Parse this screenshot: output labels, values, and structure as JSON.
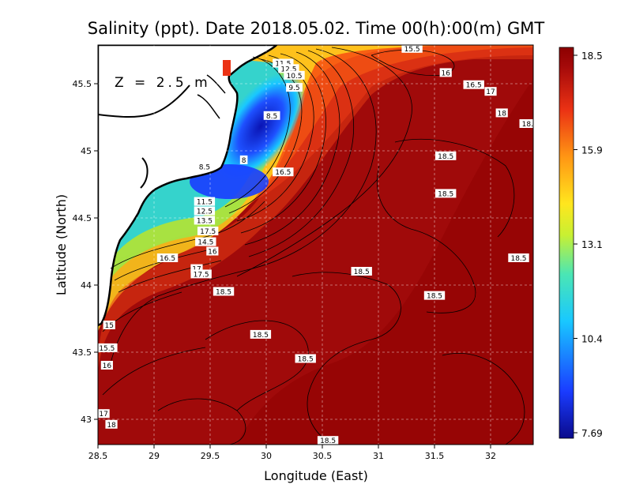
{
  "title": "Salinity (ppt). Date 2018.05.02. Time 00(h):00(m) GMT",
  "depth_label": "Z = 2.5 m",
  "axes": {
    "xlabel": "Longitude (East)",
    "ylabel": "Latitude (North)",
    "xlim": [
      28.5,
      32.4
    ],
    "ylim": [
      42.8,
      45.8
    ],
    "xticks": [
      "28.5",
      "29",
      "29.5",
      "30",
      "30.5",
      "31",
      "31.5",
      "32"
    ],
    "yticks": [
      "43",
      "43.5",
      "44",
      "44.5",
      "45",
      "45.5"
    ],
    "grid": true
  },
  "colorbar": {
    "ticks": [
      "18.5",
      "15.9",
      "13.1",
      "10.4",
      "7.69"
    ],
    "min": 7.69,
    "max": 18.5,
    "colors": [
      "#0a0a8c",
      "#1a3cff",
      "#19c8ff",
      "#4be6b4",
      "#c8f032",
      "#ffe61e",
      "#ff9614",
      "#eb3214",
      "#a50a0a",
      "#8c0000"
    ]
  },
  "contour_labels": [
    {
      "text": "15.5",
      "lon": 31.3,
      "lat": 45.76
    },
    {
      "text": "16",
      "lon": 31.6,
      "lat": 45.58
    },
    {
      "text": "16.5",
      "lon": 31.85,
      "lat": 45.49
    },
    {
      "text": "17",
      "lon": 32.0,
      "lat": 45.44
    },
    {
      "text": "18",
      "lon": 32.1,
      "lat": 45.28
    },
    {
      "text": "18.5",
      "lon": 32.35,
      "lat": 45.2
    },
    {
      "text": "11.5",
      "lon": 30.15,
      "lat": 45.65
    },
    {
      "text": "12.5",
      "lon": 30.2,
      "lat": 45.61
    },
    {
      "text": "10.5",
      "lon": 30.25,
      "lat": 45.56
    },
    {
      "text": "9.5",
      "lon": 30.25,
      "lat": 45.47
    },
    {
      "text": "8.5",
      "lon": 30.05,
      "lat": 45.26
    },
    {
      "text": "8",
      "lon": 29.8,
      "lat": 44.93
    },
    {
      "text": "8.5",
      "lon": 29.45,
      "lat": 44.88
    },
    {
      "text": "16.5",
      "lon": 30.15,
      "lat": 44.84
    },
    {
      "text": "18.5",
      "lon": 31.6,
      "lat": 44.96
    },
    {
      "text": "18.5",
      "lon": 31.6,
      "lat": 44.68
    },
    {
      "text": "11.5",
      "lon": 29.45,
      "lat": 44.62
    },
    {
      "text": "12.5",
      "lon": 29.45,
      "lat": 44.55
    },
    {
      "text": "13.5",
      "lon": 29.45,
      "lat": 44.48
    },
    {
      "text": "17.5",
      "lon": 29.48,
      "lat": 44.4
    },
    {
      "text": "14.5",
      "lon": 29.46,
      "lat": 44.32
    },
    {
      "text": "16",
      "lon": 29.52,
      "lat": 44.25
    },
    {
      "text": "16.5",
      "lon": 29.12,
      "lat": 44.2
    },
    {
      "text": "17",
      "lon": 29.38,
      "lat": 44.12
    },
    {
      "text": "17.5",
      "lon": 29.42,
      "lat": 44.08
    },
    {
      "text": "18.5",
      "lon": 29.62,
      "lat": 43.95
    },
    {
      "text": "18.5",
      "lon": 30.85,
      "lat": 44.1
    },
    {
      "text": "18.5",
      "lon": 32.25,
      "lat": 44.2
    },
    {
      "text": "18.5",
      "lon": 31.5,
      "lat": 43.92
    },
    {
      "text": "15",
      "lon": 28.6,
      "lat": 43.7
    },
    {
      "text": "15.5",
      "lon": 28.58,
      "lat": 43.53
    },
    {
      "text": "16",
      "lon": 28.58,
      "lat": 43.4
    },
    {
      "text": "18.5",
      "lon": 29.95,
      "lat": 43.63
    },
    {
      "text": "18.5",
      "lon": 30.35,
      "lat": 43.45
    },
    {
      "text": "17",
      "lon": 28.55,
      "lat": 43.04
    },
    {
      "text": "18",
      "lon": 28.62,
      "lat": 42.96
    },
    {
      "text": "18.5",
      "lon": 30.55,
      "lat": 42.84
    }
  ]
}
